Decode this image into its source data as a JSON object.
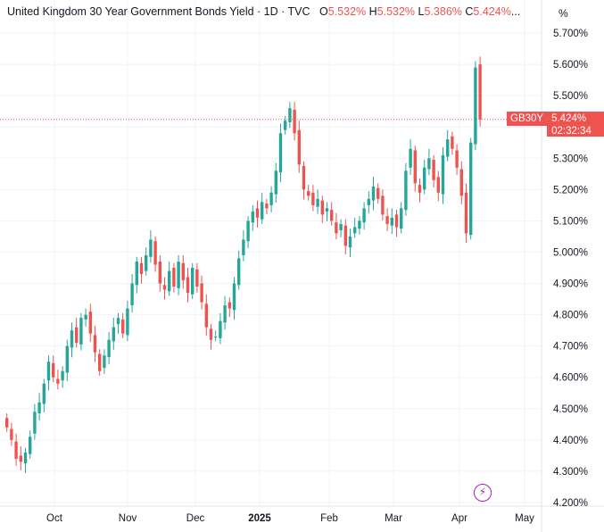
{
  "legend": {
    "title": "United Kingdom 30 Year Government Bonds Yield · 1D · TVC",
    "open_label": "O",
    "open_value": "5.532%",
    "high_label": "H",
    "high_value": "5.532%",
    "low_label": "L",
    "low_value": "5.386%",
    "close_label": "C",
    "close_value": "5.424%",
    "ellipsis": "..."
  },
  "axis": {
    "unit": "%"
  },
  "badge": {
    "symbol": "GB30Y",
    "price": "5.424%",
    "countdown": "02:32:34"
  },
  "colors": {
    "up": "#26a69a",
    "down": "#ef5350",
    "grid": "#f0f3fa",
    "axis_text": "#131722"
  },
  "icons": {
    "flash": "lightning-icon"
  },
  "chart_data": {
    "type": "candlestick",
    "title": "United Kingdom 30 Year Government Bonds Yield",
    "interval": "1D",
    "ylim": [
      4.2,
      5.75
    ],
    "y_ticks": [
      "5.700%",
      "5.600%",
      "5.500%",
      "5.400%",
      "5.300%",
      "5.200%",
      "5.100%",
      "5.000%",
      "4.900%",
      "4.800%",
      "4.700%",
      "4.600%",
      "4.500%",
      "4.400%",
      "4.300%",
      "4.200%"
    ],
    "x_ticks": [
      {
        "label": "Oct",
        "bold": false
      },
      {
        "label": "Nov",
        "bold": false
      },
      {
        "label": "Dec",
        "bold": false
      },
      {
        "label": "2025",
        "bold": true
      },
      {
        "label": "Feb",
        "bold": false
      },
      {
        "label": "Mar",
        "bold": false
      },
      {
        "label": "Apr",
        "bold": false
      },
      {
        "label": "May",
        "bold": false
      }
    ],
    "last_price": 5.424,
    "closes": [
      4.44,
      4.4,
      4.34,
      4.33,
      4.36,
      4.41,
      4.49,
      4.52,
      4.58,
      4.65,
      4.6,
      4.58,
      4.62,
      4.7,
      4.75,
      4.71,
      4.79,
      4.8,
      4.74,
      4.68,
      4.62,
      4.67,
      4.72,
      4.76,
      4.79,
      4.74,
      4.82,
      4.9,
      4.97,
      4.93,
      4.99,
      5.04,
      4.96,
      4.9,
      4.88,
      4.94,
      4.89,
      4.97,
      4.91,
      4.87,
      4.95,
      4.89,
      4.84,
      4.76,
      4.72,
      4.73,
      4.78,
      4.83,
      4.82,
      4.9,
      4.98,
      5.04,
      5.1,
      5.13,
      5.11,
      5.16,
      5.14,
      5.19,
      5.26,
      5.38,
      5.42,
      5.46,
      5.38,
      5.28,
      5.2,
      5.18,
      5.15,
      5.17,
      5.12,
      5.14,
      5.1,
      5.06,
      5.09,
      5.02,
      5.05,
      5.08,
      5.1,
      5.14,
      5.17,
      5.21,
      5.17,
      5.12,
      5.09,
      5.11,
      5.08,
      5.14,
      5.26,
      5.33,
      5.22,
      5.19,
      5.27,
      5.3,
      5.23,
      5.19,
      5.31,
      5.36,
      5.33,
      5.27,
      5.18,
      5.06,
      5.35,
      5.59,
      5.424
    ]
  }
}
